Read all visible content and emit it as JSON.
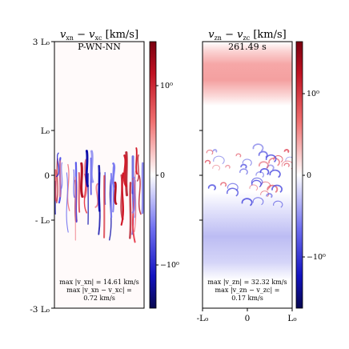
{
  "chart_data": [
    {
      "type": "heatmap",
      "title": "v_xn − v_xc [km/s]",
      "title_parts": {
        "v1": "v",
        "s1": "xn",
        "op": " − ",
        "v2": "v",
        "s2": "xc",
        "unit": " [km/s]"
      },
      "subtitle": "P-WN-NN",
      "y_ticks": [
        "3 L₀",
        "L₀",
        "0",
        "- L₀",
        "-3 L₀"
      ],
      "y_tick_values": [
        3,
        1,
        0,
        -1,
        -3
      ],
      "x_ticks": [],
      "colorbar": {
        "scale": "symlog",
        "ticks": [
          "10⁰",
          "0",
          "−10⁰"
        ],
        "tick_values": [
          1,
          0,
          -1
        ],
        "colors": [
          "#08086b",
          "#ffffff",
          "#8b0000"
        ]
      },
      "annotation": [
        "max |v_xn| = 14.61 km/s",
        "max |v_xn − v_xc| =",
        "0.72 km/s"
      ]
    },
    {
      "type": "heatmap",
      "title": "v_zn − v_zc [km/s]",
      "title_parts": {
        "v1": "v",
        "s1": "zn",
        "op": " − ",
        "v2": "v",
        "s2": "zc",
        "unit": " [km/s]"
      },
      "subtitle": "261.49 s",
      "y_ticks": [],
      "x_ticks": [
        "-L₀",
        "0",
        "L₀"
      ],
      "x_tick_values": [
        -1,
        0,
        1
      ],
      "colorbar": {
        "scale": "symlog",
        "ticks": [
          "10⁰",
          "0",
          "−10⁰"
        ],
        "tick_values": [
          1,
          0,
          -1
        ],
        "colors": [
          "#08086b",
          "#ffffff",
          "#8b0000"
        ]
      },
      "annotation": [
        "max |v_zn| = 32.32 km/s",
        "max |v_zn − v_zc| =",
        "0.17 km/s"
      ]
    }
  ]
}
